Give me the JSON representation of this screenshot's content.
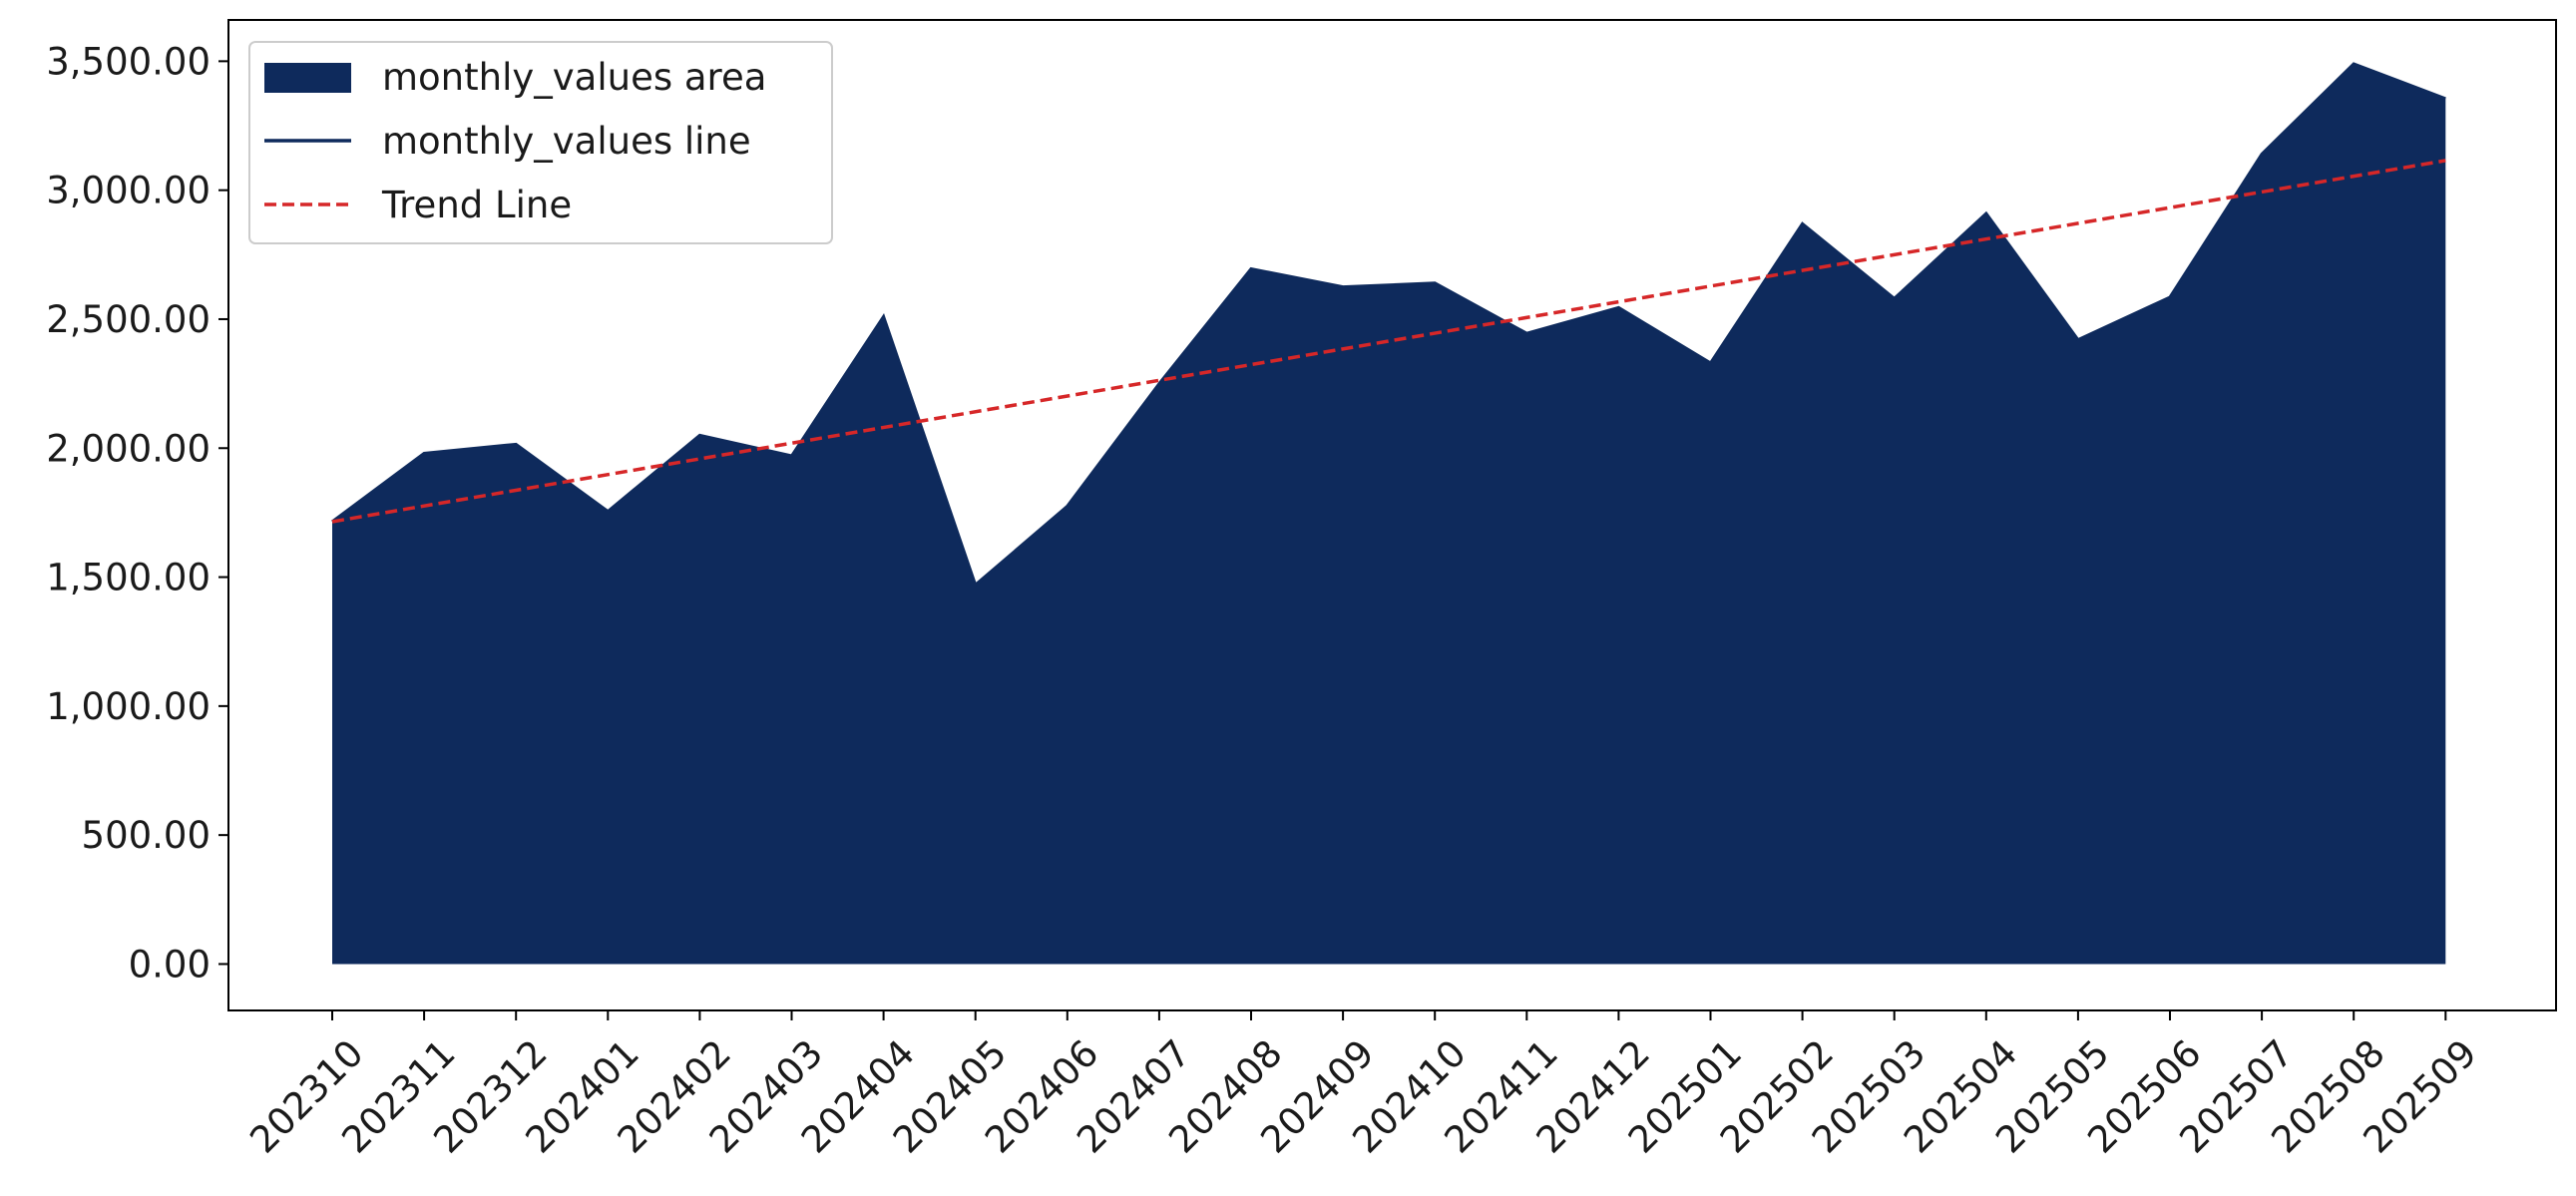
{
  "chart_data": {
    "type": "area",
    "title": "",
    "xlabel": "",
    "ylabel": "",
    "categories": [
      "202310",
      "202311",
      "202312",
      "202401",
      "202402",
      "202403",
      "202404",
      "202405",
      "202406",
      "202407",
      "202408",
      "202409",
      "202410",
      "202411",
      "202412",
      "202501",
      "202502",
      "202503",
      "202504",
      "202505",
      "202506",
      "202507",
      "202508",
      "202509"
    ],
    "series": [
      {
        "name": "monthly_values area",
        "values": [
          1715,
          1980,
          2015,
          1755,
          2050,
          1970,
          2510,
          1470,
          1775,
          2250,
          2695,
          2625,
          2640,
          2445,
          2545,
          2330,
          2870,
          2580,
          2910,
          2420,
          2585,
          3140,
          3490,
          3355
        ]
      }
    ],
    "trend": {
      "name": "Trend Line",
      "start": 1715,
      "end": 3115
    },
    "ylim": [
      -180,
      3660
    ],
    "yticks": [
      0,
      500,
      1000,
      1500,
      2000,
      2500,
      3000,
      3500
    ],
    "ytick_labels": [
      "0.00",
      "500.00",
      "1,000.00",
      "1,500.00",
      "2,000.00",
      "2,500.00",
      "3,000.00",
      "3,500.00"
    ],
    "grid": false,
    "legend": {
      "placement": "top-left",
      "entries": [
        "monthly_values area",
        "monthly_values line",
        "Trend Line"
      ]
    },
    "colors": {
      "area": "#0e2a5c",
      "line": "#0e2a5c",
      "trend": "#d62728"
    }
  }
}
